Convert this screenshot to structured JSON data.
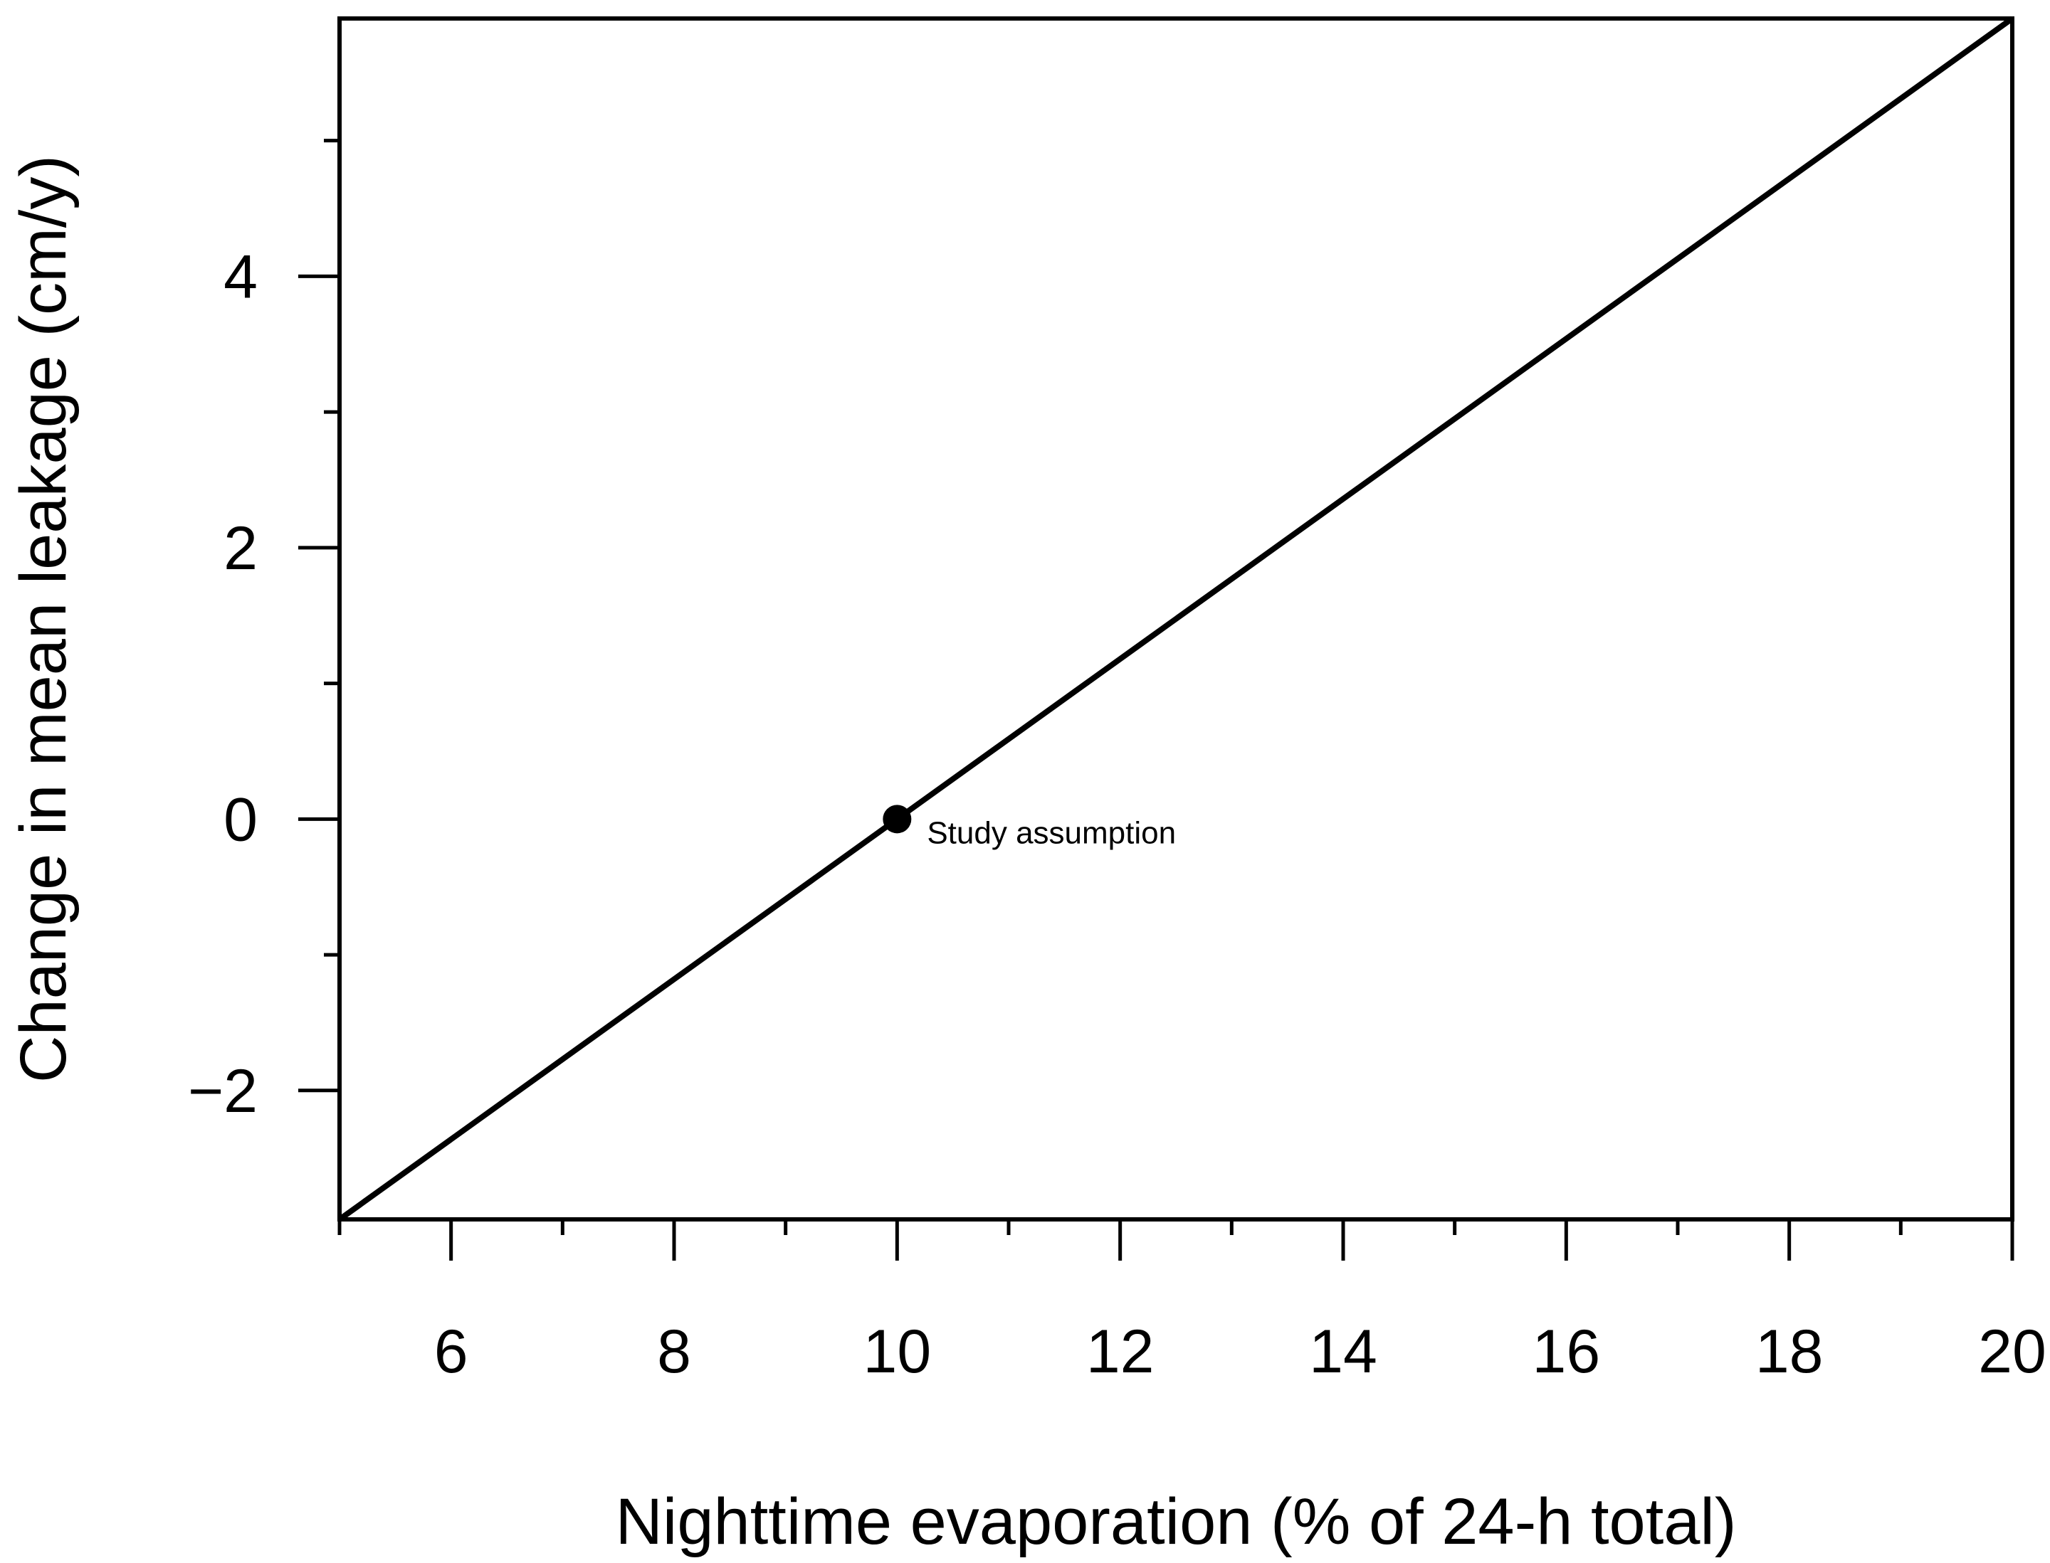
{
  "chart_data": {
    "type": "line",
    "title": "",
    "xlabel": "Nighttime evaporation (% of 24-h total)",
    "ylabel": "Change in mean leakage (cm/y)",
    "xlim": [
      5,
      20
    ],
    "ylim": [
      -2.95,
      5.9
    ],
    "x_ticks": [
      6,
      8,
      10,
      12,
      14,
      16,
      18,
      20
    ],
    "x_minor_ticks": [
      5,
      7,
      9,
      11,
      13,
      15,
      17,
      19
    ],
    "y_ticks": [
      -2,
      0,
      2,
      4
    ],
    "y_tick_labels": [
      "−2",
      "0",
      "2",
      "4"
    ],
    "y_minor_ticks": [
      -1,
      1,
      3,
      5
    ],
    "grid": false,
    "line_color": "#000000",
    "series": [
      {
        "x": [
          5,
          20
        ],
        "y": [
          -2.95,
          5.9
        ]
      }
    ],
    "annotations": [
      {
        "x": 10,
        "y": 0,
        "marker": "filled-circle",
        "text": "Study assumption"
      }
    ]
  }
}
